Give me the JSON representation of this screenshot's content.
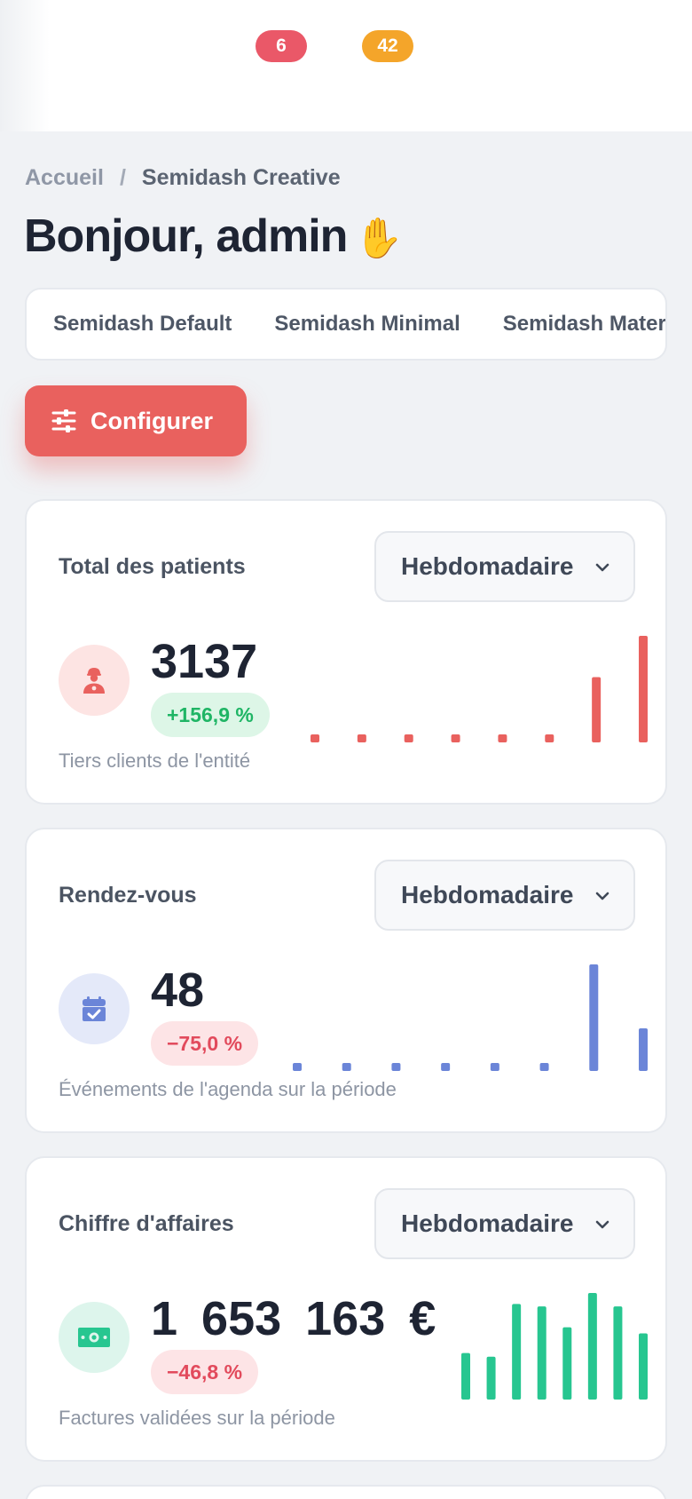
{
  "header": {
    "badges": [
      {
        "count": "6",
        "color": "#ea5868"
      },
      {
        "count": "42",
        "color": "#f4a52a"
      }
    ]
  },
  "breadcrumb": {
    "home": "Accueil",
    "separator": "/",
    "current": "Semidash Creative"
  },
  "page_title": "Bonjour, admin",
  "title_emoji_icon": "waving-hand-icon",
  "tabs": [
    {
      "label": "Semidash Default"
    },
    {
      "label": "Semidash Minimal"
    },
    {
      "label": "Semidash Material"
    }
  ],
  "configure_button": {
    "label": "Configurer",
    "icon": "sliders-icon",
    "color": "#e9615e"
  },
  "cards": [
    {
      "title": "Total des patients",
      "period": "Hebdomadaire",
      "value": "3137",
      "trend": "+156,9 %",
      "trend_direction": "up",
      "subtitle": "Tiers clients de l'entité",
      "icon": "patient-icon",
      "color": "#e9615e",
      "sparkline": [
        0,
        0,
        0,
        0,
        0,
        0,
        19,
        31
      ]
    },
    {
      "title": "Rendez-vous",
      "period": "Hebdomadaire",
      "value": "48",
      "trend": "−75,0 %",
      "trend_direction": "down",
      "subtitle": "Événements de l'agenda sur la période",
      "icon": "calendar-check-icon",
      "color": "#6b85d8",
      "sparkline": [
        0,
        0,
        0,
        1,
        0,
        1,
        25,
        10
      ]
    },
    {
      "title": "Chiffre d'affaires",
      "period": "Hebdomadaire",
      "value": "1 653 163 €",
      "trend": "−46,8 %",
      "trend_direction": "down",
      "subtitle": "Factures validées sur la période",
      "icon": "money-bill-icon",
      "color": "#27c690",
      "sparkline": [
        190000,
        175000,
        390000,
        380000,
        295000,
        435000,
        380000,
        270000
      ]
    }
  ]
}
